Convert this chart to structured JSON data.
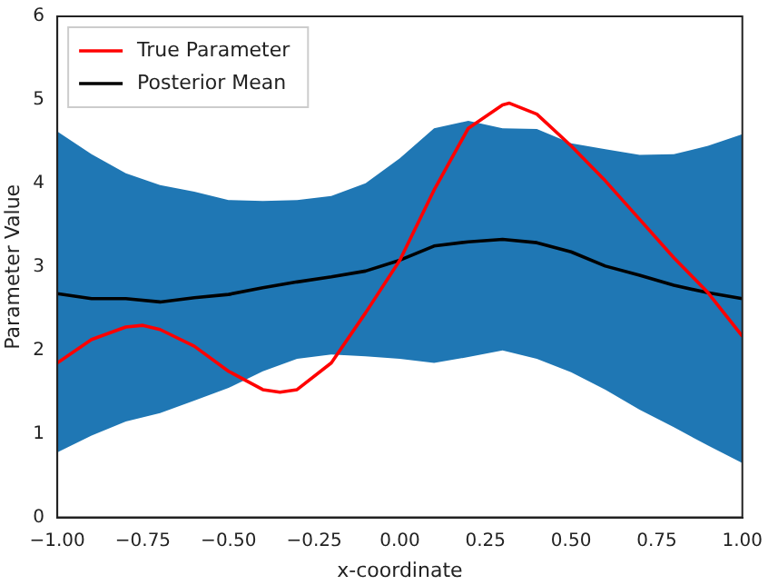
{
  "chart_data": {
    "type": "line",
    "xlabel": "x-coordinate",
    "ylabel": "Parameter Value",
    "xlim": [
      -1,
      1
    ],
    "ylim": [
      0,
      6
    ],
    "xticks": [
      {
        "value": -1,
        "label": "−1.00"
      },
      {
        "value": -0.75,
        "label": "−0.75"
      },
      {
        "value": -0.5,
        "label": "−0.50"
      },
      {
        "value": -0.25,
        "label": "−0.25"
      },
      {
        "value": 0,
        "label": "0.00"
      },
      {
        "value": 0.25,
        "label": "0.25"
      },
      {
        "value": 0.5,
        "label": "0.50"
      },
      {
        "value": 0.75,
        "label": "0.75"
      },
      {
        "value": 1,
        "label": "1.00"
      }
    ],
    "yticks": [
      0,
      1,
      2,
      3,
      4,
      5,
      6
    ],
    "grid": false,
    "legend": "top left",
    "marker": "none",
    "line_style": "solid",
    "series": [
      {
        "name": "True Parameter",
        "color": "#ff0000",
        "x": [
          -1,
          -0.9,
          -0.8,
          -0.75,
          -0.7,
          -0.6,
          -0.5,
          -0.4,
          -0.35,
          -0.3,
          -0.2,
          -0.1,
          0,
          0.1,
          0.2,
          0.3,
          0.32,
          0.4,
          0.5,
          0.6,
          0.7,
          0.8,
          0.9,
          1
        ],
        "values": [
          1.85,
          2.13,
          2.28,
          2.3,
          2.25,
          2.05,
          1.75,
          1.53,
          1.5,
          1.53,
          1.85,
          2.45,
          3.08,
          3.92,
          4.66,
          4.94,
          4.96,
          4.83,
          4.45,
          4.03,
          3.57,
          3.11,
          2.69,
          2.17
        ]
      },
      {
        "name": "Posterior Mean",
        "color": "#000000",
        "x": [
          -1,
          -0.9,
          -0.8,
          -0.7,
          -0.6,
          -0.5,
          -0.4,
          -0.3,
          -0.2,
          -0.1,
          0,
          0.1,
          0.2,
          0.3,
          0.4,
          0.5,
          0.6,
          0.7,
          0.8,
          0.9,
          1
        ],
        "values": [
          2.68,
          2.62,
          2.62,
          2.58,
          2.63,
          2.67,
          2.75,
          2.82,
          2.88,
          2.95,
          3.08,
          3.25,
          3.3,
          3.33,
          3.29,
          3.18,
          3.01,
          2.9,
          2.78,
          2.69,
          2.62
        ],
        "upper": [
          4.62,
          4.35,
          4.12,
          3.98,
          3.9,
          3.8,
          3.79,
          3.8,
          3.85,
          4.0,
          4.3,
          4.66,
          4.75,
          4.66,
          4.65,
          4.48,
          4.41,
          4.34,
          4.35,
          4.45,
          4.59
        ],
        "lower": [
          0.78,
          0.98,
          1.15,
          1.25,
          1.4,
          1.55,
          1.75,
          1.9,
          1.95,
          1.93,
          1.9,
          1.85,
          1.92,
          2.0,
          1.9,
          1.74,
          1.53,
          1.29,
          1.08,
          0.86,
          0.65
        ]
      }
    ]
  }
}
